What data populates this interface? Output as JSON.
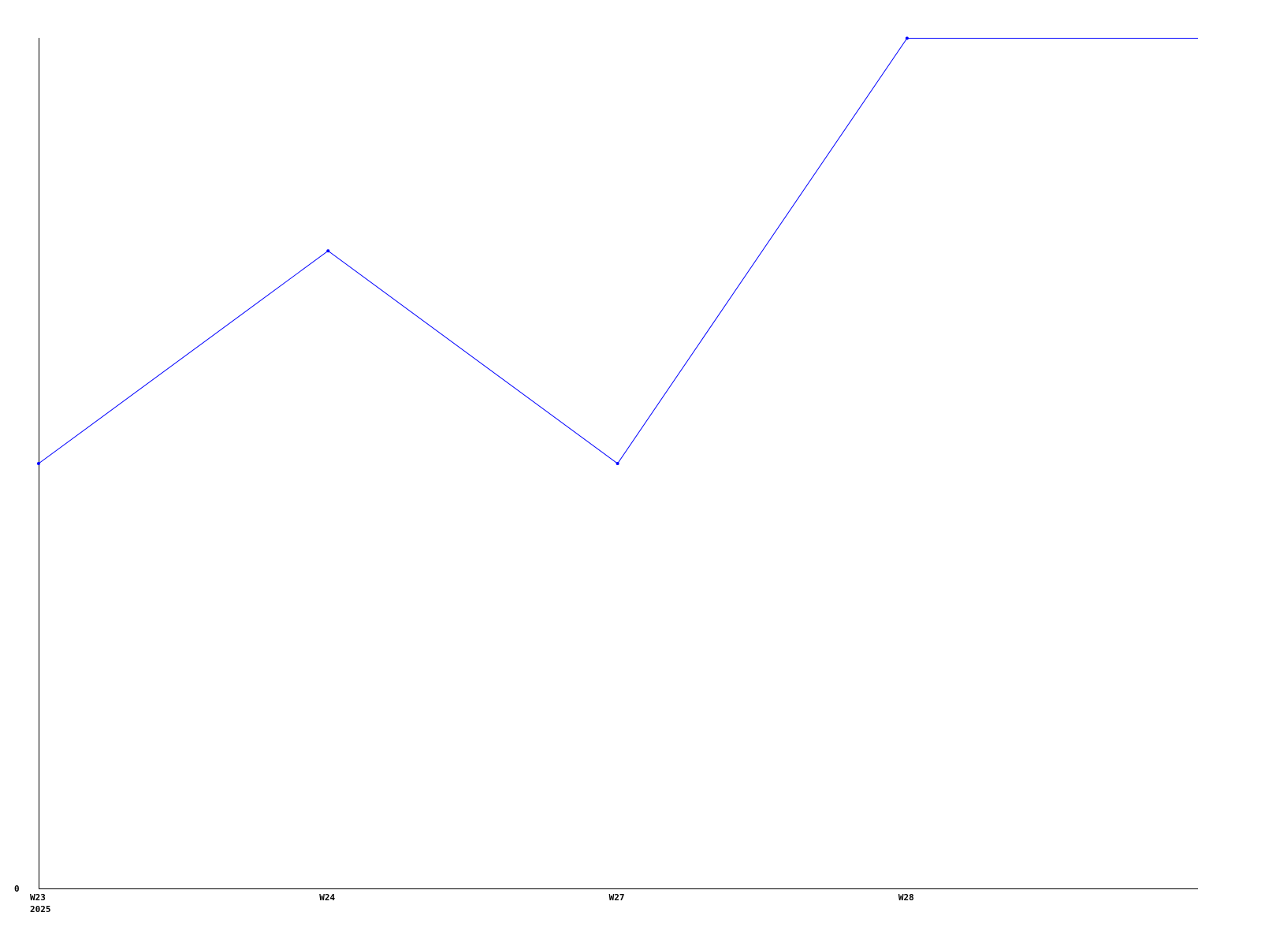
{
  "chart_data": {
    "type": "line",
    "title": "",
    "xlabel": "",
    "ylabel": "",
    "categories": [
      "W23",
      "W24",
      "W27",
      "W28"
    ],
    "x_sublabel": "2025",
    "series": [
      {
        "values": [
          2,
          3,
          2,
          4
        ],
        "color": "#0000ff"
      }
    ],
    "ylim": [
      0,
      4
    ],
    "y_ticks": [
      "0"
    ],
    "grid": false,
    "legend": "none",
    "line_extends_flat_to_right_edge": true
  }
}
